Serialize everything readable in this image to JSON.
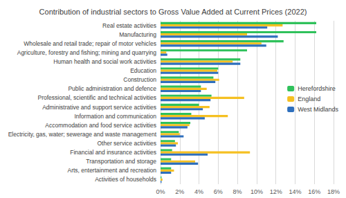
{
  "chart_data": {
    "type": "bar",
    "title": "Contribution of industrial sectors to Gross Value Added at Current Prices (2022)",
    "orientation": "horizontal",
    "categories": [
      "Real estate activities",
      "Manufacturing",
      "Wholesale and retail trade; repair of motor vehicles",
      "Agriculture, forestry and fishing; mining and quarrying",
      "Human health and social work activities",
      "Education",
      "Construction",
      "Public administration and defence",
      "Professional, scientific and technical activities",
      "Administrative and support service activities",
      "Information and communication",
      "Accommodation and food service activities",
      "Electricity, gas, water; sewerage and waste management",
      "Other service activities",
      "Financial and insurance activities",
      "Transportation and storage",
      "Arts, entertainment and recreation",
      "Activities of households"
    ],
    "series": [
      {
        "name": "Herefordshire",
        "color": "#2fc15b",
        "values": [
          16.2,
          16.2,
          12.8,
          9.0,
          8.3,
          6.0,
          5.5,
          4.2,
          5.3,
          4.0,
          3.2,
          3.1,
          1.9,
          1.5,
          1.2,
          1.1,
          1.1,
          0.1
        ]
      },
      {
        "name": "England",
        "color": "#f5c022",
        "values": [
          12.7,
          9.0,
          10.5,
          0.6,
          7.5,
          5.9,
          6.1,
          4.8,
          8.7,
          5.1,
          7.0,
          3.0,
          2.0,
          1.8,
          9.3,
          3.6,
          1.4,
          0.2
        ]
      },
      {
        "name": "West Midlands",
        "color": "#2e6fbd",
        "values": [
          11.1,
          12.2,
          11.0,
          0.7,
          8.3,
          6.0,
          5.7,
          4.2,
          5.2,
          4.4,
          4.6,
          2.8,
          2.4,
          1.6,
          4.9,
          3.9,
          1.1,
          0.1
        ]
      }
    ],
    "xlim": [
      0,
      18
    ],
    "xticks": [
      {
        "value": 0,
        "label": "0%"
      },
      {
        "value": 2,
        "label": "2%"
      },
      {
        "value": 4,
        "label": "4%"
      },
      {
        "value": 6,
        "label": "6%"
      },
      {
        "value": 8,
        "label": "8%"
      },
      {
        "value": 10,
        "label": "10%"
      },
      {
        "value": 12,
        "label": "12%"
      },
      {
        "value": 14,
        "label": "14%"
      },
      {
        "value": 16,
        "label": "16%"
      },
      {
        "value": 18,
        "label": "18%"
      }
    ],
    "grid": true,
    "legend": "right"
  }
}
